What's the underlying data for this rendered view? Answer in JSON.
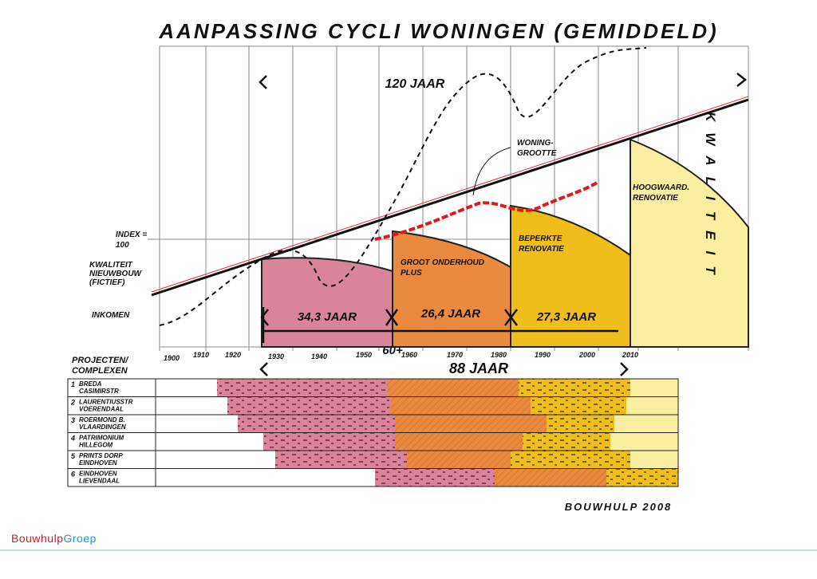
{
  "title": "AANPASSING CYCLI WONINGEN (GEMIDDELD)",
  "annotations": {
    "span_top": "120 JAAR",
    "woninggrootte": [
      "WONING-",
      "GROOTTE"
    ],
    "index": [
      "INDEX =",
      "100"
    ],
    "kwaliteit_nieuwbouw": [
      "KWALITEIT",
      "NIEUWBOUW",
      "(FICTIEF)"
    ],
    "inkomen": "INKOMEN",
    "groot_onderhoud": [
      "GROOT ONDERHOUD",
      "PLUS"
    ],
    "beperkte_renovatie": [
      "BEPERKTE",
      "RENOVATIE"
    ],
    "hoogwaardige_renovatie": [
      "HOOGWAARD.",
      "RENOVATIE"
    ],
    "kwaliteit_vertical": "KWALITEIT",
    "cycle_1": "34,3 JAAR",
    "cycle_break": "60+",
    "cycle_2": "26,4 JAAR",
    "cycle_3": "27,3 JAAR",
    "span_bottom": "88 JAAR"
  },
  "years": [
    "1900",
    "1910",
    "1920",
    "1930",
    "1940",
    "1950",
    "1960",
    "1970",
    "1980",
    "1990",
    "2000",
    "2010"
  ],
  "table": {
    "header": [
      "PROJECTEN/",
      "COMPLEXEN"
    ],
    "rows": [
      {
        "number": "1",
        "lines": [
          "BREDA",
          "CASIMIRSTR"
        ]
      },
      {
        "number": "2",
        "lines": [
          "LAURENTIUSSTR",
          "VOERENDAAL"
        ]
      },
      {
        "number": "3",
        "lines": [
          "ROERMOND B.",
          "VLAARDINGEN"
        ]
      },
      {
        "number": "4",
        "lines": [
          "PATRIMONIUM",
          "HILLEGOM"
        ]
      },
      {
        "number": "5",
        "lines": [
          "PRINTS DORP",
          "EINDHOVEN"
        ]
      },
      {
        "number": "6",
        "lines": [
          "EINDHOVEN",
          "LIEVENDAAL"
        ]
      }
    ]
  },
  "signature": "BOUWHULP 2008",
  "footer": {
    "brand_a": "Bouwhulp",
    "brand_b": "Groep"
  }
}
